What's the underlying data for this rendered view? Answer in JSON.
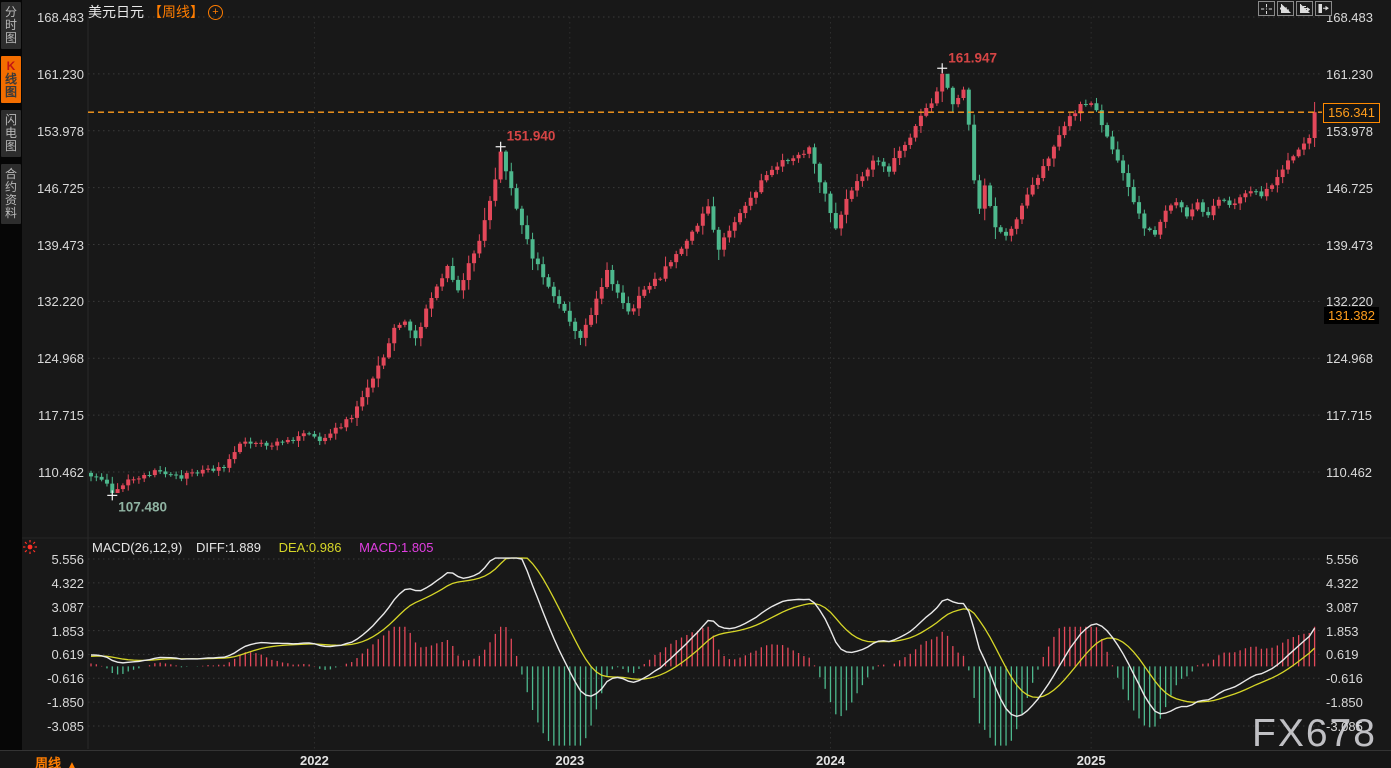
{
  "header": {
    "title": "美元日元",
    "period_tag": "【周线】",
    "add_icon": "+"
  },
  "toolbar": {
    "buttons": [
      {
        "name": "pan-crosshair-icon"
      },
      {
        "name": "scale-y-axis-icon"
      },
      {
        "name": "scale-x-axis-icon"
      },
      {
        "name": "exit-chart-icon"
      }
    ]
  },
  "sidebar": {
    "items": [
      {
        "label": "分时图",
        "active": false
      },
      {
        "label": "K线图",
        "active": true,
        "prefix": "K"
      },
      {
        "label": "闪电图",
        "active": false
      },
      {
        "label": "合约资料",
        "active": false
      }
    ]
  },
  "bottom_bar": {
    "period_label": "周线",
    "arrow_symbol": "▲"
  },
  "watermark": "FX678",
  "price_badges": {
    "current": "156.341",
    "reference": "131.382"
  },
  "chart_data": {
    "type": "candlestick+macd",
    "title": "美元日元 周线 (USD/JPY weekly)",
    "price_axis_ticks": [
      "168.483",
      "161.230",
      "153.978",
      "146.725",
      "139.473",
      "132.220",
      "124.968",
      "117.715",
      "110.462"
    ],
    "macd_axis_ticks": [
      "5.556",
      "4.322",
      "3.087",
      "1.853",
      "0.619",
      "-0.616",
      "-1.850",
      "-3.085"
    ],
    "x_ticks": [
      "2022",
      "2023",
      "2024",
      "2025"
    ],
    "x_tick_indices": [
      42,
      90,
      139,
      188
    ],
    "num_candles": 231,
    "current_price": 156.341,
    "reference_price": 131.382,
    "annotations": [
      {
        "text": "107.480",
        "index": 4,
        "price": 107.48,
        "type": "low"
      },
      {
        "text": "151.940",
        "index": 77,
        "price": 151.94,
        "type": "high"
      },
      {
        "text": "161.947",
        "index": 160,
        "price": 161.947,
        "type": "high"
      }
    ],
    "macd": {
      "label": "MACD(26,12,9)",
      "diff_label": "DIFF:1.889",
      "dea_label": "DEA:0.986",
      "macd_label": "MACD:1.805",
      "fast": 12,
      "slow": 26,
      "signal": 9
    },
    "weekly_close_anchors": [
      [
        0,
        110.2
      ],
      [
        2,
        109.2
      ],
      [
        4,
        108.1
      ],
      [
        6,
        109.0
      ],
      [
        9,
        109.9
      ],
      [
        13,
        110.5
      ],
      [
        17,
        109.9
      ],
      [
        21,
        110.4
      ],
      [
        25,
        111.2
      ],
      [
        28,
        113.8
      ],
      [
        31,
        114.4
      ],
      [
        34,
        113.7
      ],
      [
        37,
        114.6
      ],
      [
        40,
        115.1
      ],
      [
        43,
        114.7
      ],
      [
        46,
        115.9
      ],
      [
        49,
        117.6
      ],
      [
        52,
        121.2
      ],
      [
        55,
        125.2
      ],
      [
        57,
        128.6
      ],
      [
        59,
        129.9
      ],
      [
        61,
        127.4
      ],
      [
        63,
        131.0
      ],
      [
        65,
        134.0
      ],
      [
        67,
        136.4
      ],
      [
        69,
        133.4
      ],
      [
        71,
        136.9
      ],
      [
        73,
        139.6
      ],
      [
        75,
        145.0
      ],
      [
        77,
        151.2
      ],
      [
        79,
        146.8
      ],
      [
        81,
        141.8
      ],
      [
        83,
        137.8
      ],
      [
        86,
        134.3
      ],
      [
        88,
        131.8
      ],
      [
        90,
        129.6
      ],
      [
        92,
        127.4
      ],
      [
        95,
        132.3
      ],
      [
        97,
        135.9
      ],
      [
        99,
        133.1
      ],
      [
        101,
        130.7
      ],
      [
        104,
        133.6
      ],
      [
        107,
        135.4
      ],
      [
        110,
        138.4
      ],
      [
        113,
        140.9
      ],
      [
        116,
        144.4
      ],
      [
        118,
        138.9
      ],
      [
        121,
        142.4
      ],
      [
        124,
        145.4
      ],
      [
        127,
        148.4
      ],
      [
        130,
        149.9
      ],
      [
        133,
        150.9
      ],
      [
        135,
        151.7
      ],
      [
        137,
        147.7
      ],
      [
        140,
        141.7
      ],
      [
        142,
        145.1
      ],
      [
        145,
        148.3
      ],
      [
        147,
        150.3
      ],
      [
        150,
        149.1
      ],
      [
        152,
        151.6
      ],
      [
        154,
        153.1
      ],
      [
        156,
        155.8
      ],
      [
        158,
        157.6
      ],
      [
        160,
        160.9
      ],
      [
        162,
        157.6
      ],
      [
        164,
        159.3
      ],
      [
        165,
        155.0
      ],
      [
        166,
        148.0
      ],
      [
        167,
        143.8
      ],
      [
        168,
        147.0
      ],
      [
        170,
        141.6
      ],
      [
        172,
        140.4
      ],
      [
        174,
        142.9
      ],
      [
        176,
        145.7
      ],
      [
        178,
        147.9
      ],
      [
        180,
        150.6
      ],
      [
        182,
        153.6
      ],
      [
        184,
        155.9
      ],
      [
        186,
        157.1
      ],
      [
        188,
        157.6
      ],
      [
        190,
        155.0
      ],
      [
        192,
        151.5
      ],
      [
        194,
        148.5
      ],
      [
        196,
        145.0
      ],
      [
        198,
        141.8
      ],
      [
        200,
        140.6
      ],
      [
        202,
        143.5
      ],
      [
        204,
        145.2
      ],
      [
        206,
        143.4
      ],
      [
        208,
        144.6
      ],
      [
        210,
        143.3
      ],
      [
        212,
        145.5
      ],
      [
        214,
        144.2
      ],
      [
        216,
        145.8
      ],
      [
        218,
        146.4
      ],
      [
        220,
        145.6
      ],
      [
        222,
        147.2
      ],
      [
        224,
        148.8
      ],
      [
        226,
        150.9
      ],
      [
        228,
        152.4
      ],
      [
        229,
        153.0
      ],
      [
        230,
        156.341
      ]
    ],
    "colors": {
      "up": "#e3485a",
      "down": "#4db88d",
      "price_line": "#ff9d1c",
      "accent": "#ff6f00",
      "diff_line": "#e9e9e9",
      "dea_line": "#d6d628",
      "macd_text": "#e03ee0",
      "axis_text": "#d9d9d9",
      "annotation_high": "#d64545",
      "annotation_low": "#8fb3a2",
      "grid_h": "#3a3a3a",
      "grid_v": "#2e2e2e",
      "hist_up": "#e3485a",
      "hist_down": "#4db88d"
    }
  }
}
